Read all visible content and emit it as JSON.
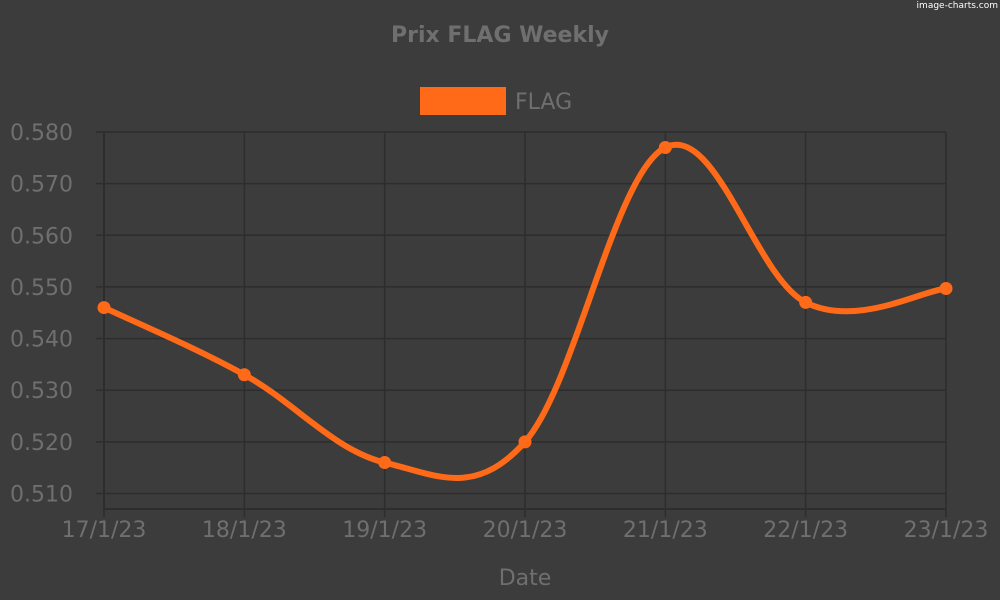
{
  "watermark": "image-charts.com",
  "chart_data": {
    "type": "line",
    "title": "Prix FLAG Weekly",
    "xlabel": "Date",
    "ylabel": "",
    "categories": [
      "17/1/23",
      "18/1/23",
      "19/1/23",
      "20/1/23",
      "21/1/23",
      "22/1/23",
      "23/1/23"
    ],
    "series": [
      {
        "name": "FLAG",
        "values": [
          0.546,
          0.533,
          0.516,
          0.52,
          0.577,
          0.547,
          0.5497
        ]
      }
    ],
    "ylim": [
      0.507,
      0.58
    ],
    "yticks": [
      "0.510",
      "0.520",
      "0.530",
      "0.540",
      "0.550",
      "0.560",
      "0.570",
      "0.580"
    ],
    "grid": true,
    "legend_position": "top-center",
    "colors": {
      "background": "#3c3c3c",
      "series": "#ff6a19",
      "grid": "#2d2d2d",
      "text": "#6f6f6f"
    }
  }
}
